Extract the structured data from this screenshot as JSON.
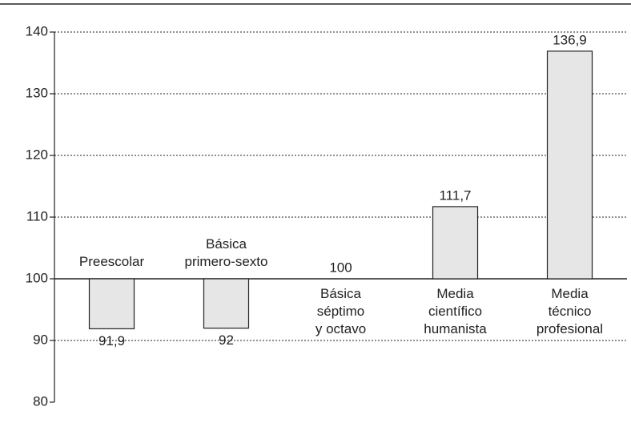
{
  "chart_data": {
    "type": "bar",
    "categories": [
      "Preescolar",
      "Básica\nprimero-sexto",
      "Básica\nséptimo\ny octavo",
      "Media\ncientífico\nhumanista",
      "Media\ntécnico\nprofesional"
    ],
    "values": [
      91.9,
      92,
      100,
      111.7,
      136.9
    ],
    "value_labels": [
      "91,9",
      "92",
      "100",
      "111,7",
      "136,9"
    ],
    "color": "#e6e6e6",
    "baseline": 100,
    "ylim": [
      80,
      140
    ],
    "yticks": [
      80,
      90,
      100,
      110,
      120,
      130,
      140
    ],
    "grid": true
  }
}
